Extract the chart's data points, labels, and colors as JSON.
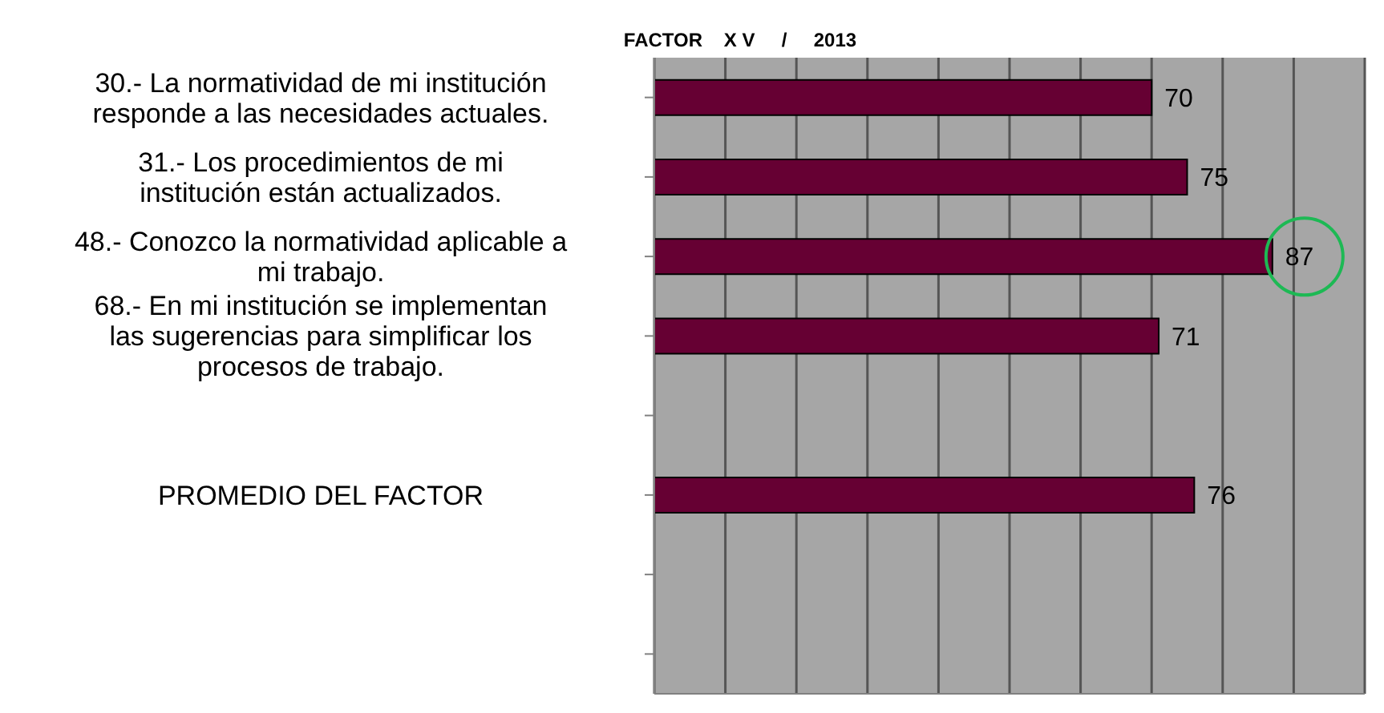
{
  "chart_data": {
    "type": "bar",
    "orientation": "horizontal",
    "title": "FACTOR    X V     /     2013",
    "categories": [
      "30.- La normatividad de mi institución responde a las necesidades actuales.",
      "31.- Los procedimientos de mi institución están actualizados.",
      "48.- Conozco la normatividad aplicable a mi trabajo.",
      "68.- En mi institución se implementan las sugerencias para simplificar los procesos de trabajo.",
      null,
      "PROMEDIO DEL FACTOR",
      null,
      null
    ],
    "values": [
      70,
      75,
      87,
      71,
      null,
      76,
      null,
      null
    ],
    "color": "#660033",
    "data_labels": true,
    "xlim": [
      0,
      100
    ],
    "xticks": [
      {
        "value": 0,
        "label": null
      },
      {
        "value": 10,
        "label": null
      },
      {
        "value": 20,
        "label": null
      },
      {
        "value": 30,
        "label": null
      },
      {
        "value": 40,
        "label": null
      },
      {
        "value": 50,
        "label": null
      },
      {
        "value": 60,
        "label": null
      },
      {
        "value": 70,
        "label": null
      },
      {
        "value": 80,
        "label": null
      },
      {
        "value": 90,
        "label": null
      },
      {
        "value": 100,
        "label": null
      }
    ],
    "tick_labels": "y",
    "grid": "x"
  }
}
